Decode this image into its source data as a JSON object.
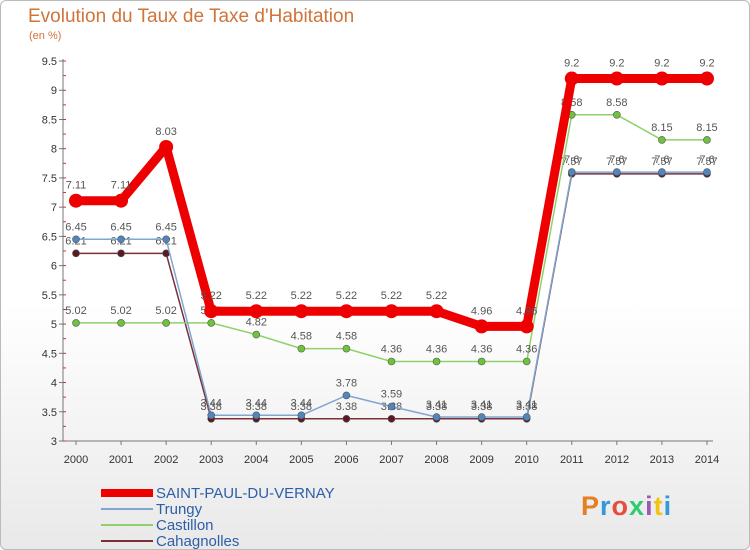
{
  "header": {
    "title": "Evolution du Taux de Taxe d'Habitation",
    "unit": "(en %)"
  },
  "logo": {
    "text": "Proxiti",
    "colors": [
      "#e67e22",
      "#3498db",
      "#e74c3c",
      "#2ecc71",
      "#9b59b6",
      "#f1c40f",
      "#3498db"
    ]
  },
  "chart_data": {
    "type": "line",
    "title": "Evolution du Taux de Taxe d'Habitation",
    "ylabel": "(en %)",
    "xlabel": "",
    "ylim": [
      3,
      9.5
    ],
    "grid": false,
    "legend_position": "bottom-left",
    "x": [
      "2000",
      "2001",
      "2002",
      "2003",
      "2004",
      "2005",
      "2006",
      "2007",
      "2008",
      "2009",
      "2010",
      "2011",
      "2012",
      "2013",
      "2014"
    ],
    "yticks": [
      "3",
      "3.5",
      "4",
      "4.5",
      "5",
      "5.5",
      "6",
      "6.5",
      "7",
      "7.5",
      "8",
      "8.5",
      "9",
      "9.5"
    ],
    "series": [
      {
        "name": "Cahagnolles",
        "color": "#7a2f3b",
        "marker": "#5a1a24",
        "values": [
          6.21,
          6.21,
          6.21,
          3.38,
          3.38,
          3.38,
          3.38,
          3.38,
          3.38,
          3.38,
          3.38,
          7.57,
          7.57,
          7.57,
          7.57
        ],
        "labels": [
          "6.21",
          "6.21",
          "6.21",
          "3.38",
          "3.38",
          "3.38",
          "3.38",
          "3.38",
          "3.38",
          "3.38",
          "3.38",
          "7.57",
          "7.57",
          "7.57",
          "7.57"
        ]
      },
      {
        "name": "Castillon",
        "color": "#8fd16a",
        "marker": "#6cc43c",
        "values": [
          5.02,
          5.02,
          5.02,
          5.02,
          4.82,
          4.58,
          4.58,
          4.36,
          4.36,
          4.36,
          4.36,
          8.58,
          8.58,
          8.15,
          8.15
        ],
        "labels": [
          "5.02",
          "5.02",
          "5.02",
          "5.02",
          "4.82",
          "4.58",
          "4.58",
          "4.36",
          "4.36",
          "4.36",
          "4.36",
          "8.58",
          "8.58",
          "8.15",
          "8.15"
        ]
      },
      {
        "name": "Trungy",
        "color": "#7fa7cf",
        "marker": "#4f86c0",
        "values": [
          6.45,
          6.45,
          6.45,
          3.44,
          3.44,
          3.44,
          3.78,
          3.59,
          3.41,
          3.41,
          3.41,
          7.6,
          7.6,
          7.6,
          7.6
        ],
        "labels": [
          "6.45",
          "6.45",
          "6.45",
          "3.44",
          "3.44",
          "3.44",
          "3.78",
          "3.59",
          "3.41",
          "3.41",
          "3.41",
          "7.6",
          "7.6",
          "7.6",
          "7.6"
        ]
      },
      {
        "name": "SAINT-PAUL-DU-VERNAY",
        "color": "#ee0000",
        "marker": "#ee0000",
        "values": [
          7.11,
          7.11,
          8.03,
          5.22,
          5.22,
          5.22,
          5.22,
          5.22,
          5.22,
          4.96,
          4.96,
          9.2,
          9.2,
          9.2,
          9.2
        ],
        "labels": [
          "7.11",
          "7.11",
          "8.03",
          "5.22",
          "5.22",
          "5.22",
          "5.22",
          "5.22",
          "5.22",
          "4.96",
          "4.96",
          "9.2",
          "9.2",
          "9.2",
          "9.2"
        ]
      }
    ],
    "legend_order": [
      "SAINT-PAUL-DU-VERNAY",
      "Trungy",
      "Castillon",
      "Cahagnolles"
    ]
  }
}
